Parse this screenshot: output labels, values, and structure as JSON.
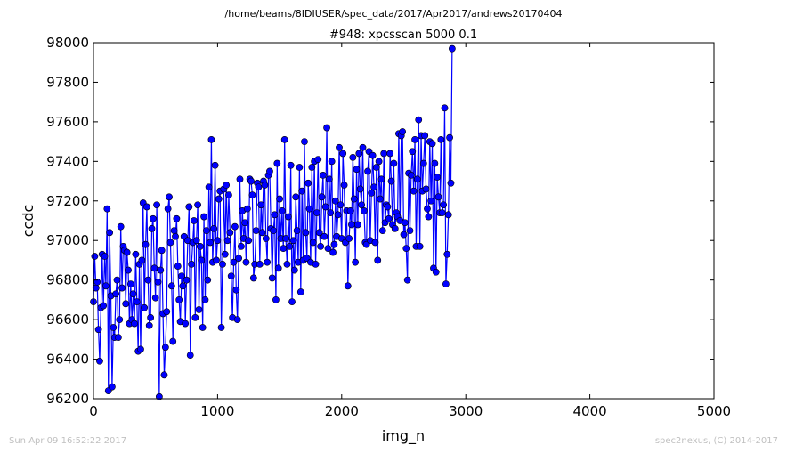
{
  "chart_data": {
    "type": "line",
    "suptitle": "/home/beams/8IDIUSER/spec_data/2017/Apr2017/andrews20170404",
    "title": "#948: xpcsscan 5000 0.1",
    "xlabel": "img_n",
    "ylabel": "ccdc",
    "xlim": [
      0,
      5000
    ],
    "ylim": [
      96200,
      98000
    ],
    "xticks": [
      "0",
      "1000",
      "2000",
      "3000",
      "4000",
      "5000"
    ],
    "yticks": [
      "96200",
      "96400",
      "96600",
      "96800",
      "97000",
      "97200",
      "97400",
      "97600",
      "97800",
      "98000"
    ],
    "grid": false,
    "series_color": "#0000ff",
    "marker": "circle",
    "footer_left": "Sun Apr 09 16:52:22 2017",
    "footer_right": "spec2nexus, (C) 2014-2017",
    "series": [
      {
        "step": 10,
        "x_start": 0,
        "y": [
          96690,
          96920,
          96760,
          96790,
          96550,
          96390,
          96660,
          96930,
          96670,
          96920,
          96770,
          97160,
          96240,
          97040,
          96720,
          96260,
          96560,
          96510,
          96730,
          96800,
          96510,
          96600,
          97070,
          96760,
          96970,
          96950,
          96680,
          96940,
          96850,
          96580,
          96780,
          96600,
          96730,
          96580,
          96930,
          96690,
          96440,
          96880,
          96450,
          96900,
          97190,
          96660,
          96980,
          97170,
          96800,
          96570,
          96610,
          97060,
          97110,
          96860,
          96710,
          97180,
          96790,
          96210,
          96850,
          96950,
          96630,
          96320,
          96460,
          96640,
          97160,
          97220,
          96990,
          96770,
          96490,
          97050,
          97020,
          97110,
          96870,
          96700,
          96590,
          96820,
          96770,
          97020,
          96580,
          96800,
          97000,
          97170,
          96420,
          96880,
          96990,
          97100,
          96610,
          97000,
          97180,
          96650,
          96970,
          96900,
          96560,
          97120,
          96700,
          97050,
          96800,
          97270,
          96990,
          97510,
          96890,
          97060,
          97380,
          96900,
          97000,
          97210,
          97250,
          96560,
          96880,
          97260,
          96930,
          97280,
          97000,
          97230,
          97040,
          96820,
          96610,
          96890,
          97070,
          96750,
          96600,
          96910,
          97310,
          96970,
          97150,
          97010,
          97090,
          96890,
          97160,
          97000,
          97310,
          97300,
          97230,
          96810,
          96880,
          97050,
          97290,
          97270,
          96880,
          97180,
          97040,
          97300,
          97280,
          97010,
          96890,
          97330,
          97350,
          97060,
          96810,
          97050,
          97130,
          96700,
          97390,
          96860,
          97210,
          97010,
          97150,
          96960,
          97510,
          97010,
          96880,
          97120,
          96970,
          97380,
          96690,
          97000,
          96850,
          97220,
          97050,
          96890,
          97370,
          96740,
          97250,
          96900,
          97500,
          97040,
          96910,
          97290,
          97160,
          96890,
          97370,
          96990,
          97400,
          96880,
          97140,
          97410,
          97040,
          96970,
          97220,
          97330,
          97020,
          97170,
          97570,
          96960,
          97310,
          97140,
          97400,
          96940,
          96980,
          97200,
          97020,
          97130,
          97470,
          97180,
          97010,
          97440,
          97280,
          96990,
          97150,
          96770,
          97010,
          97150,
          97080,
          97420,
          97210,
          96890,
          97360,
          97080,
          97440,
          97260,
          97180,
          97470,
          97150,
          96990,
          96980,
          97350,
          97450,
          97000,
          97240,
          97430,
          97270,
          96990,
          97370,
          96900,
          97400,
          97210,
          97310,
          97050,
          97440,
          97090,
          97180,
          97170,
          97110,
          97440,
          97300,
          97080,
          97390,
          97060,
          97140,
          97120,
          97540,
          97100,
          97530,
          97550,
          97030,
          97090,
          96960,
          96800,
          97340,
          97050,
          97330,
          97450,
          97250,
          97510,
          96970,
          97310,
          97610,
          96970,
          97530,
          97250,
          97390,
          97530,
          97260,
          97160,
          97120,
          97500,
          97200,
          97490,
          96860,
          97390,
          96840,
          97320,
          97220,
          97140,
          97510,
          97140,
          97180,
          97670,
          96780,
          96930,
          97130,
          97520,
          97290,
          97970
        ]
      }
    ]
  }
}
